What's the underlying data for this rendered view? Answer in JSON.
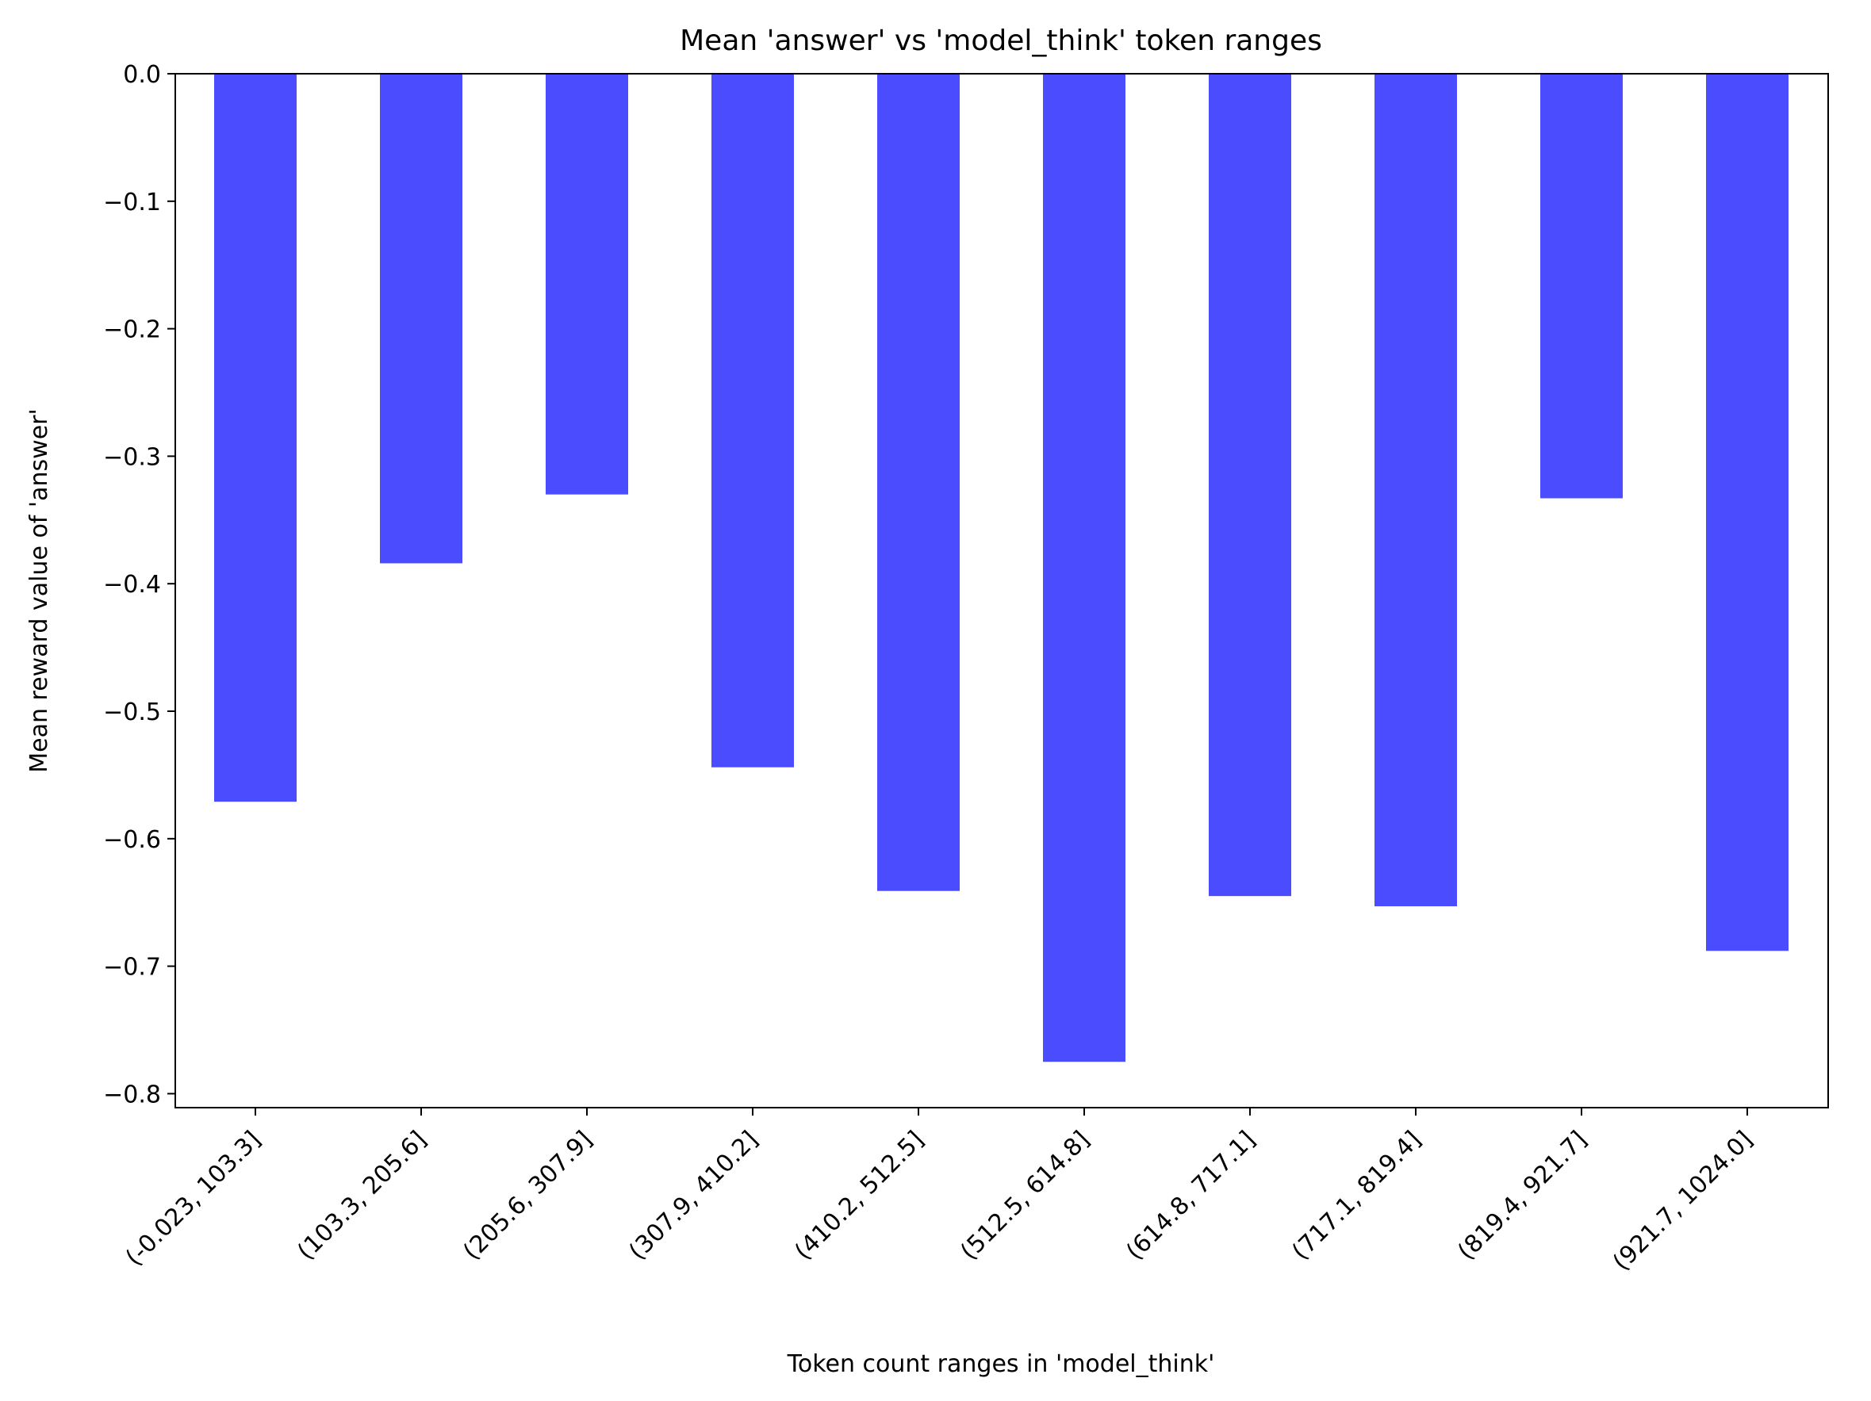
{
  "chart_data": {
    "type": "bar",
    "title": "Mean 'answer' vs 'model_think' token ranges",
    "xlabel": "Token count ranges in 'model_think'",
    "ylabel": "Mean reward value of 'answer'",
    "categories": [
      "(-0.023, 103.3]",
      "(103.3, 205.6]",
      "(205.6, 307.9]",
      "(307.9, 410.2]",
      "(410.2, 512.5]",
      "(512.5, 614.8]",
      "(614.8, 717.1]",
      "(717.1, 819.4]",
      "(819.4, 921.7]",
      "(921.7, 1024.0]"
    ],
    "values": [
      -0.571,
      -0.384,
      -0.33,
      -0.544,
      -0.641,
      -0.775,
      -0.645,
      -0.653,
      -0.333,
      -0.688
    ],
    "ylim": [
      -0.815,
      0.0
    ],
    "yticks": [
      0.0,
      -0.1,
      -0.2,
      -0.3,
      -0.4,
      -0.5,
      -0.6,
      -0.7,
      -0.8
    ],
    "ytick_labels": [
      "0.0",
      "−0.1",
      "−0.2",
      "−0.3",
      "−0.4",
      "−0.5",
      "−0.6",
      "−0.7",
      "−0.8"
    ],
    "bar_color": "#4c4cff",
    "grid": false,
    "legend": "none"
  }
}
